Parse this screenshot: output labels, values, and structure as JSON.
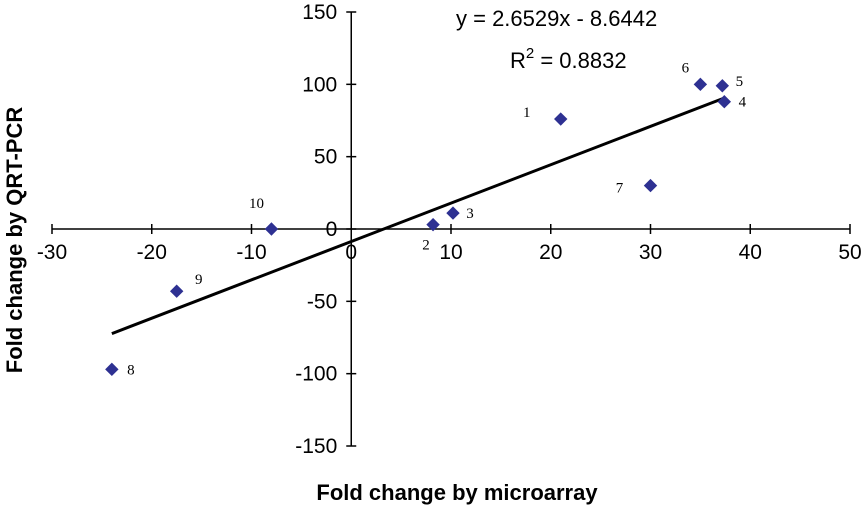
{
  "chart_data": {
    "type": "scatter",
    "xlabel": "Fold change by microarray",
    "ylabel": "Fold change by QRT-PCR",
    "xlim": [
      -30,
      50
    ],
    "ylim": [
      -150,
      150
    ],
    "x_ticks": [
      -30,
      -20,
      -10,
      0,
      10,
      20,
      30,
      40,
      50
    ],
    "y_ticks": [
      -150,
      -100,
      -50,
      0,
      50,
      100,
      150
    ],
    "tick_labels_x": [
      "-30",
      "-20",
      "-10",
      "0",
      "10",
      "20",
      "30",
      "40",
      "50"
    ],
    "tick_labels_y": [
      "-150",
      "-100",
      "-50",
      "0",
      "50",
      "100",
      "150"
    ],
    "grid": false,
    "marker_color": "#2e3192",
    "line_color": "#000000",
    "points": [
      {
        "label": "1",
        "x": 21,
        "y": 76
      },
      {
        "label": "2",
        "x": 8.2,
        "y": 3
      },
      {
        "label": "3",
        "x": 10.2,
        "y": 11
      },
      {
        "label": "4",
        "x": 37.4,
        "y": 88
      },
      {
        "label": "5",
        "x": 37.2,
        "y": 99
      },
      {
        "label": "6",
        "x": 35,
        "y": 100
      },
      {
        "label": "7",
        "x": 30,
        "y": 30
      },
      {
        "label": "8",
        "x": -24,
        "y": -97
      },
      {
        "label": "9",
        "x": -17.5,
        "y": -43
      },
      {
        "label": "10",
        "x": -8,
        "y": 0
      }
    ],
    "trendline": {
      "slope": 2.6529,
      "intercept": -8.6442,
      "x_range": [
        -24,
        37.4
      ]
    },
    "equation_text": "y = 2.6529x - 8.6442",
    "r2_prefix": "R",
    "r2_exponent": "2",
    "r2_value_text": " = 0.8832"
  }
}
